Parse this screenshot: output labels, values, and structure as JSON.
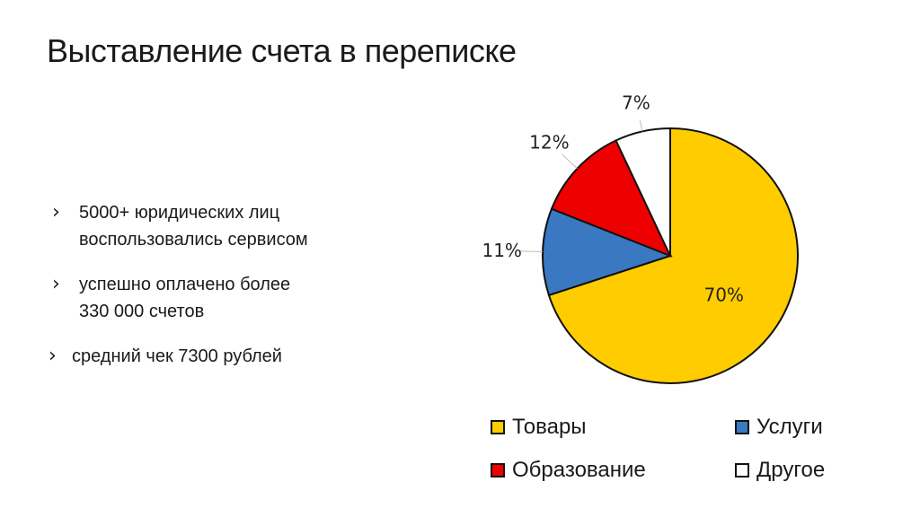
{
  "slide": {
    "title": "Выставление счета в переписке"
  },
  "bullets": [
    {
      "line1": "5000+ юридических лиц",
      "line2": "воспользовались сервисом"
    },
    {
      "line1": "успешно оплачено более",
      "line2": "330 000 счетов"
    },
    {
      "line1": "средний чек 7300 рублей",
      "line2": ""
    }
  ],
  "bullet_marker": "›",
  "chart_data": {
    "type": "pie",
    "title": "",
    "start_angle_deg": 0,
    "direction": "clockwise",
    "slices": [
      {
        "label": "Товары",
        "value": 70,
        "value_label": "70%",
        "color": "#FFCC00"
      },
      {
        "label": "Услуги",
        "value": 11,
        "value_label": "11%",
        "color": "#3A78C2"
      },
      {
        "label": "Образование",
        "value": 12,
        "value_label": "12%",
        "color": "#EE0000"
      },
      {
        "label": "Другое",
        "value": 7,
        "value_label": "7%",
        "color": "#FFFFFF"
      }
    ],
    "legend_position": "bottom"
  }
}
